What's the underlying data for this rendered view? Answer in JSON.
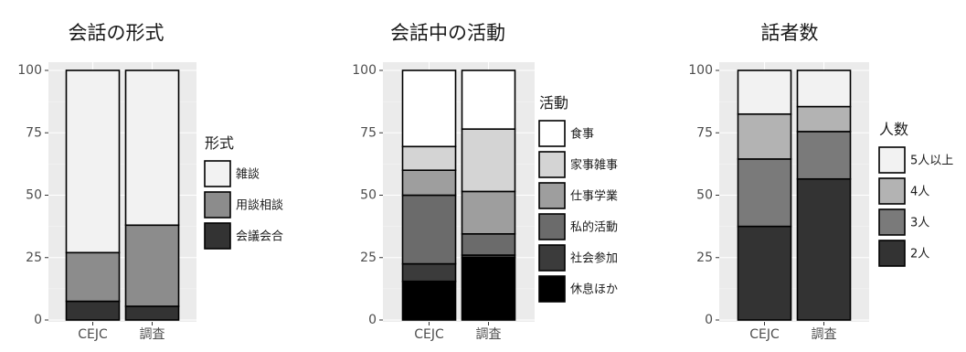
{
  "chart_data": [
    {
      "type": "bar",
      "stacked": true,
      "title": "会話の形式",
      "categories": [
        "CEJC",
        "調査"
      ],
      "ylim": [
        0,
        100
      ],
      "yticks": [
        "0",
        "25",
        "50",
        "75",
        "100"
      ],
      "legend_title": "形式",
      "legend_position": "right",
      "series": [
        {
          "name": "会議会合",
          "color": "#333333",
          "values": [
            7.5,
            5.5
          ]
        },
        {
          "name": "用談相談",
          "color": "#8c8c8c",
          "values": [
            19.5,
            32.5
          ]
        },
        {
          "name": "雑談",
          "color": "#f2f2f2",
          "values": [
            73,
            62
          ]
        }
      ],
      "legend_order": [
        "雑談",
        "用談相談",
        "会議会合"
      ]
    },
    {
      "type": "bar",
      "stacked": true,
      "title": "会話中の活動",
      "categories": [
        "CEJC",
        "調査"
      ],
      "ylim": [
        0,
        100
      ],
      "yticks": [
        "0",
        "25",
        "50",
        "75",
        "100"
      ],
      "legend_title": "活動",
      "legend_position": "right",
      "series": [
        {
          "name": "休息ほか",
          "color": "#000000",
          "values": [
            15.5,
            25
          ]
        },
        {
          "name": "社会参加",
          "color": "#3b3b3b",
          "values": [
            7,
            1
          ]
        },
        {
          "name": "私的活動",
          "color": "#6b6b6b",
          "values": [
            27.5,
            8.5
          ]
        },
        {
          "name": "仕事学業",
          "color": "#9e9e9e",
          "values": [
            10,
            17
          ]
        },
        {
          "name": "家事雑事",
          "color": "#d4d4d4",
          "values": [
            9.5,
            25
          ]
        },
        {
          "name": "食事",
          "color": "#ffffff",
          "values": [
            30.5,
            23.5
          ]
        }
      ],
      "legend_order": [
        "食事",
        "家事雑事",
        "仕事学業",
        "私的活動",
        "社会参加",
        "休息ほか"
      ]
    },
    {
      "type": "bar",
      "stacked": true,
      "title": "話者数",
      "categories": [
        "CEJC",
        "調査"
      ],
      "ylim": [
        0,
        100
      ],
      "yticks": [
        "0",
        "25",
        "50",
        "75",
        "100"
      ],
      "legend_title": "人数",
      "legend_position": "right",
      "series": [
        {
          "name": "2人",
          "color": "#333333",
          "values": [
            37.5,
            56.5
          ]
        },
        {
          "name": "3人",
          "color": "#7a7a7a",
          "values": [
            27,
            19
          ]
        },
        {
          "name": "4人",
          "color": "#b3b3b3",
          "values": [
            18,
            10
          ]
        },
        {
          "name": "5人以上",
          "color": "#f2f2f2",
          "values": [
            17.5,
            14.5
          ]
        }
      ],
      "legend_order": [
        "5人以上",
        "4人",
        "3人",
        "2人"
      ]
    }
  ]
}
